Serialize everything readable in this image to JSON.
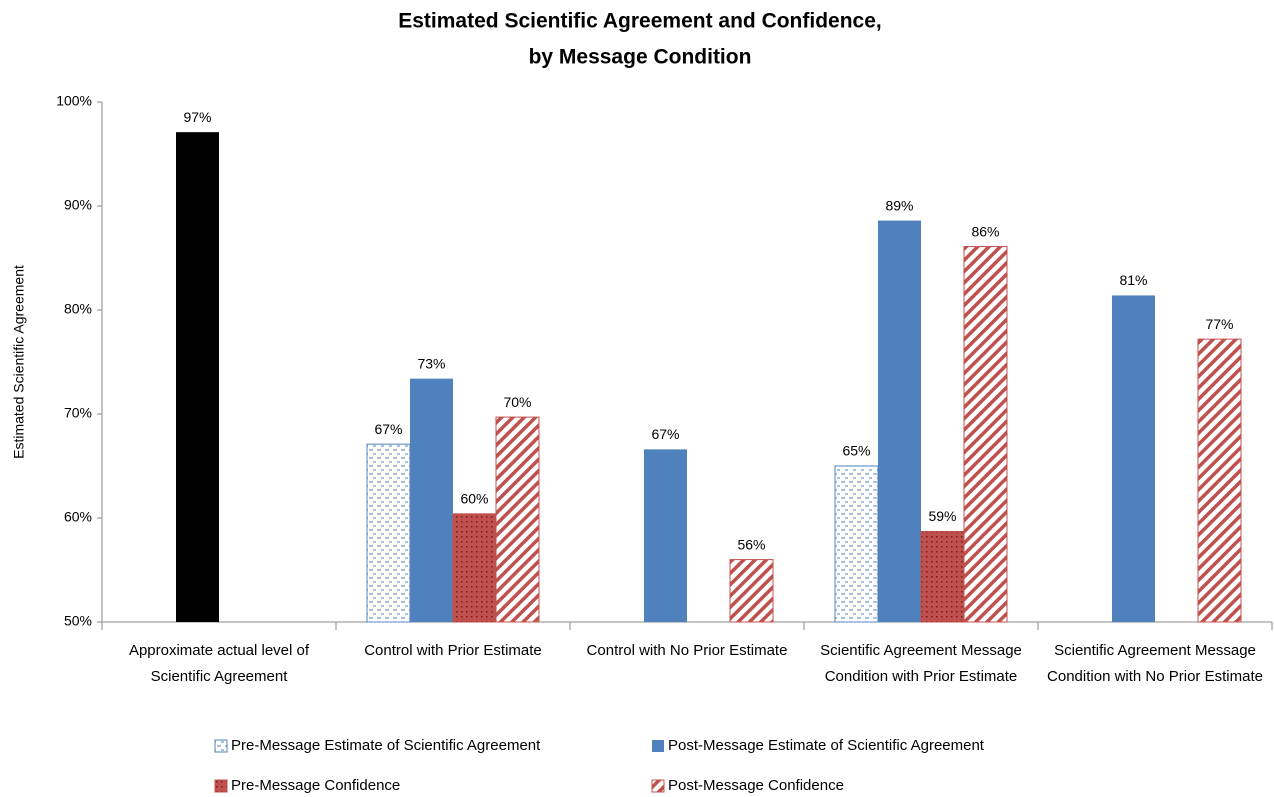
{
  "chart_data": {
    "type": "bar",
    "title": [
      "Estimated Scientific Agreement and Confidence,",
      "by Message Condition"
    ],
    "ylabel": "Estimated Scientific Agreement",
    "categories": [
      "Approximate actual level of Scientific Agreement",
      "Control with Prior Estimate",
      "Control with No Prior Estimate",
      "Scientific Agreement Message Condition with Prior Estimate",
      "Scientific Agreement Message Condition with No Prior Estimate"
    ],
    "series": [
      {
        "name": "Pre-Message Estimate of Scientific Agreement",
        "color": "#4f81bd",
        "pattern": "dashes",
        "values": [
          null,
          67.1,
          null,
          65.0,
          null
        ],
        "value_labels": [
          null,
          "67%",
          null,
          "65%",
          null
        ]
      },
      {
        "name": "Post-Message Estimate of Scientific Agreement",
        "color": "#4f81bd",
        "pattern": "solid",
        "values": [
          null,
          73.4,
          66.6,
          88.6,
          81.4
        ],
        "value_labels": [
          null,
          "73%",
          "67%",
          "89%",
          "81%"
        ]
      },
      {
        "name": "Pre-Message Confidence",
        "color": "#c0504d",
        "pattern": "dots",
        "values": [
          null,
          60.4,
          null,
          58.7,
          null
        ],
        "value_labels": [
          null,
          "60%",
          null,
          "59%",
          null
        ]
      },
      {
        "name": "Post-Message Confidence",
        "color": "#c0504d",
        "pattern": "stripes",
        "values": [
          null,
          69.7,
          56.0,
          86.1,
          77.2
        ],
        "value_labels": [
          null,
          "70%",
          "56%",
          "86%",
          "77%"
        ]
      },
      {
        "color": "#000000",
        "pattern": "solid",
        "values": [
          97.1,
          null,
          null,
          null,
          null
        ],
        "value_labels": [
          "97%",
          null,
          null,
          null,
          null
        ]
      }
    ],
    "ylim": [
      50,
      100
    ],
    "yticks": [
      {
        "value": 50,
        "label": "50%"
      },
      {
        "value": 60,
        "label": "60%"
      },
      {
        "value": 70,
        "label": "70%"
      },
      {
        "value": 80,
        "label": "80%"
      },
      {
        "value": 90,
        "label": "90%"
      },
      {
        "value": 100,
        "label": "100%"
      }
    ],
    "grid": false,
    "legend": "bottom"
  }
}
